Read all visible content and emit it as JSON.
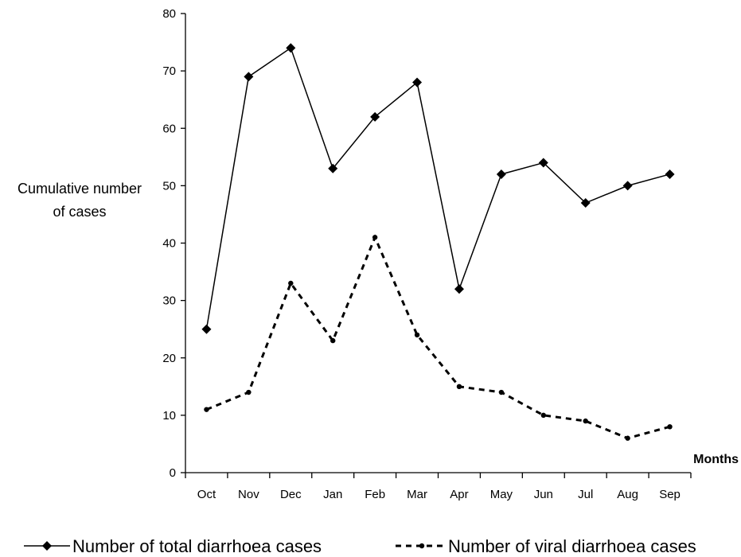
{
  "chart_data": {
    "type": "line",
    "title": "",
    "ylabel": [
      "Cumulative number",
      "of cases"
    ],
    "xlabel": "Months",
    "ylim": [
      0,
      80
    ],
    "yticks": [
      "0",
      "10",
      "20",
      "30",
      "40",
      "50",
      "60",
      "70",
      "80"
    ],
    "categories": [
      "Oct",
      "Nov",
      "Dec",
      "Jan",
      "Feb",
      "Mar",
      "Apr",
      "May",
      "Jun",
      "Jul",
      "Aug",
      "Sep"
    ],
    "series": [
      {
        "name": "Number of total diarrhoea cases",
        "style": "solid",
        "marker": "diamond",
        "values": [
          25,
          69,
          74,
          53,
          62,
          68,
          32,
          52,
          54,
          47,
          50,
          52
        ]
      },
      {
        "name": "Number of viral diarrhoea cases",
        "style": "dashed",
        "marker": "dot",
        "values": [
          11,
          14,
          33,
          23,
          41,
          24,
          15,
          14,
          10,
          9,
          6,
          8
        ]
      }
    ],
    "grid": false,
    "legend": "bottom",
    "colors": {
      "line": "#000000"
    }
  }
}
